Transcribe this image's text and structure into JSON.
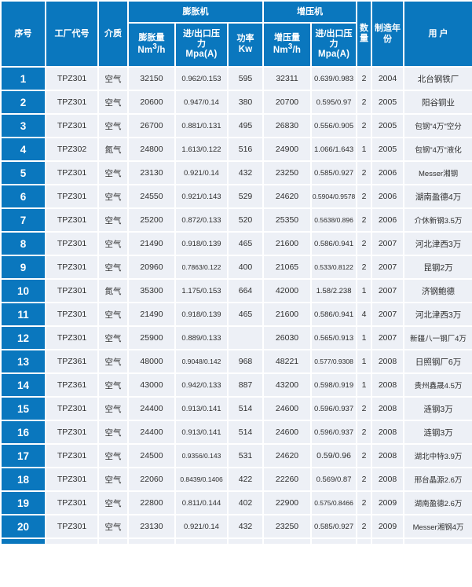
{
  "colors": {
    "header_bg": "#0a77be",
    "row_bg": "#edf0f6",
    "grid": "#ffffff",
    "header_text": "#ffffff",
    "cell_text": "#2e2e2e"
  },
  "table": {
    "header": {
      "serial": "序号",
      "factory_code": "工厂代号",
      "medium": "介质",
      "expander_group": "膨胀机",
      "booster_group": "增压机",
      "expander_flow": "膨胀量",
      "booster_flow": "增压量",
      "flow_unit_base": "Nm",
      "flow_unit_sup": "3",
      "flow_unit_tail": "/h",
      "pressure_l1": "进/出口压",
      "pressure_l2": "力",
      "pressure_unit": "Mpa(A)",
      "power": "功率",
      "power_unit": "Kw",
      "quantity": "数量",
      "year": "制造年份",
      "customer": "用 户"
    },
    "col_names": [
      "serial",
      "factory-code",
      "medium",
      "expander-flow",
      "expander-pressure",
      "power",
      "booster-flow",
      "booster-pressure",
      "quantity",
      "year",
      "customer"
    ],
    "rows": [
      [
        "1",
        "TPZ301",
        "空气",
        "32150",
        "0.962/0.153",
        "595",
        "32311",
        "0.639/0.983",
        "2",
        "2004",
        "北台钢铁厂"
      ],
      [
        "2",
        "TPZ301",
        "空气",
        "20600",
        "0.947/0.14",
        "380",
        "20700",
        "0.595/0.97",
        "2",
        "2005",
        "阳谷铜业"
      ],
      [
        "3",
        "TPZ301",
        "空气",
        "26700",
        "0.881/0.131",
        "495",
        "26830",
        "0.556/0.905",
        "2",
        "2005",
        "包钢\"4万\"空分"
      ],
      [
        "4",
        "TPZ302",
        "氮气",
        "24800",
        "1.613/0.122",
        "516",
        "24900",
        "1.066/1.643",
        "1",
        "2005",
        "包钢\"4万\"液化"
      ],
      [
        "5",
        "TPZ301",
        "空气",
        "23130",
        "0.921/0.14",
        "432",
        "23250",
        "0.585/0.927",
        "2",
        "2006",
        "Messer湘钢"
      ],
      [
        "6",
        "TPZ301",
        "空气",
        "24550",
        "0.921/0.143",
        "529",
        "24620",
        "0.5904/0.9578",
        "2",
        "2006",
        "湖南盈德4万"
      ],
      [
        "7",
        "TPZ301",
        "空气",
        "25200",
        "0.872/0.133",
        "520",
        "25350",
        "0.5638/0.896",
        "2",
        "2006",
        "介休新钢3.5万"
      ],
      [
        "8",
        "TPZ301",
        "空气",
        "21490",
        "0.918/0.139",
        "465",
        "21600",
        "0.586/0.941",
        "2",
        "2007",
        "河北津西3万"
      ],
      [
        "9",
        "TPZ301",
        "空气",
        "20960",
        "0.7863/0.122",
        "400",
        "21065",
        "0.533/0.8122",
        "2",
        "2007",
        "昆钢2万"
      ],
      [
        "10",
        "TPZ301",
        "氮气",
        "35300",
        "1.175/0.153",
        "664",
        "42000",
        "1.58/2.238",
        "1",
        "2007",
        "济钢鲍德"
      ],
      [
        "11",
        "TPZ301",
        "空气",
        "21490",
        "0.918/0.139",
        "465",
        "21600",
        "0.586/0.941",
        "4",
        "2007",
        "河北津西3万"
      ],
      [
        "12",
        "TPZ301",
        "空气",
        "25900",
        "0.889/0.133",
        "",
        "26030",
        "0.565/0.913",
        "1",
        "2007",
        "新疆八一钢厂4万"
      ],
      [
        "13",
        "TPZ361",
        "空气",
        "48000",
        "0.9048/0.142",
        "968",
        "48221",
        "0.577/0.9308",
        "1",
        "2008",
        "日照钢厂6万"
      ],
      [
        "14",
        "TPZ361",
        "空气",
        "43000",
        "0.942/0.133",
        "887",
        "43200",
        "0.598/0.919",
        "1",
        "2008",
        "贵州鑫晟4.5万"
      ],
      [
        "15",
        "TPZ301",
        "空气",
        "24400",
        "0.913/0.141",
        "514",
        "24600",
        "0.596/0.937",
        "2",
        "2008",
        "涟钢3万"
      ],
      [
        "16",
        "TPZ301",
        "空气",
        "24400",
        "0.913/0.141",
        "514",
        "24600",
        "0.596/0.937",
        "2",
        "2008",
        "涟钢3万"
      ],
      [
        "17",
        "TPZ301",
        "空气",
        "24500",
        "0.9356/0.143",
        "531",
        "24620",
        "0.59/0.96",
        "2",
        "2008",
        "湖北中特3.9万"
      ],
      [
        "18",
        "TPZ301",
        "空气",
        "22060",
        "0.8439/0.1406",
        "422",
        "22260",
        "0.569/0.87",
        "2",
        "2008",
        "邢台晶源2.6万"
      ],
      [
        "19",
        "TPZ301",
        "空气",
        "22800",
        "0.811/0.144",
        "402",
        "22900",
        "0.575/0.8466",
        "2",
        "2009",
        "湖南盈德2.6万"
      ],
      [
        "20",
        "TPZ301",
        "空气",
        "23130",
        "0.921/0.14",
        "432",
        "23250",
        "0.585/0.927",
        "2",
        "2009",
        "Messer湘钢4万"
      ]
    ]
  }
}
